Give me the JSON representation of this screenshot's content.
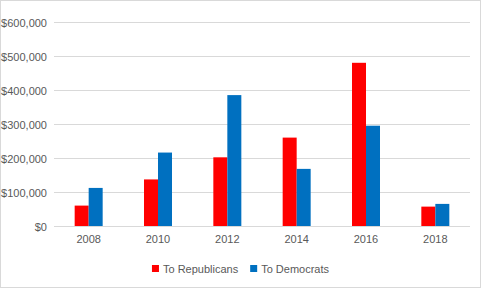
{
  "chart_data": {
    "type": "bar",
    "categories": [
      "2008",
      "2010",
      "2012",
      "2014",
      "2016",
      "2018"
    ],
    "series": [
      {
        "name": "To Republicans",
        "color": "#ff0000",
        "values": [
          60000,
          137000,
          202000,
          260000,
          480000,
          57000
        ]
      },
      {
        "name": "To Democrats",
        "color": "#0070c0",
        "values": [
          112000,
          216000,
          385000,
          168000,
          295000,
          65000
        ]
      }
    ],
    "ylim": [
      0,
      600000
    ],
    "yticks": [
      {
        "value": 0,
        "label": "$0"
      },
      {
        "value": 100000,
        "label": "$100,000"
      },
      {
        "value": 200000,
        "label": "$200,000"
      },
      {
        "value": 300000,
        "label": "$300,000"
      },
      {
        "value": 400000,
        "label": "$400,000"
      },
      {
        "value": 500000,
        "label": "$500,000"
      },
      {
        "value": 600000,
        "label": "$600,000"
      }
    ],
    "grid": true,
    "legend": "bottom"
  }
}
